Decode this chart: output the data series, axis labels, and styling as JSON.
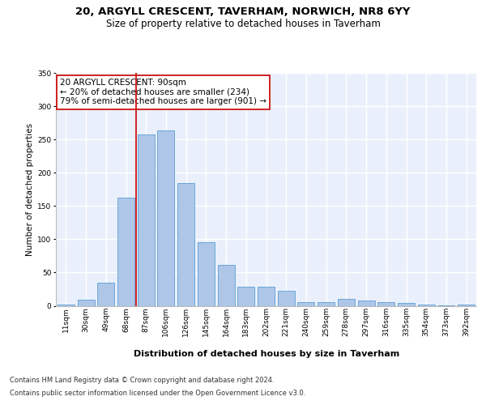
{
  "title1": "20, ARGYLL CRESCENT, TAVERHAM, NORWICH, NR8 6YY",
  "title2": "Size of property relative to detached houses in Taverham",
  "xlabel": "Distribution of detached houses by size in Taverham",
  "ylabel": "Number of detached properties",
  "categories": [
    "11sqm",
    "30sqm",
    "49sqm",
    "68sqm",
    "87sqm",
    "106sqm",
    "126sqm",
    "145sqm",
    "164sqm",
    "183sqm",
    "202sqm",
    "221sqm",
    "240sqm",
    "259sqm",
    "278sqm",
    "297sqm",
    "316sqm",
    "335sqm",
    "354sqm",
    "373sqm",
    "392sqm"
  ],
  "values": [
    2,
    9,
    35,
    162,
    258,
    263,
    185,
    96,
    61,
    29,
    29,
    22,
    6,
    5,
    10,
    8,
    6,
    4,
    2,
    1,
    2
  ],
  "bar_color": "#aec6e8",
  "bar_edge_color": "#5a9fd4",
  "background_color": "#eaf0fb",
  "grid_color": "#ffffff",
  "property_label": "20 ARGYLL CRESCENT: 90sqm",
  "annotation_line1": "← 20% of detached houses are smaller (234)",
  "annotation_line2": "79% of semi-detached houses are larger (901) →",
  "vline_color": "#cc0000",
  "annotation_box_color": "#ffffff",
  "annotation_box_edge": "#cc0000",
  "ylim": [
    0,
    350
  ],
  "yticks": [
    0,
    50,
    100,
    150,
    200,
    250,
    300,
    350
  ],
  "footnote1": "Contains HM Land Registry data © Crown copyright and database right 2024.",
  "footnote2": "Contains public sector information licensed under the Open Government Licence v3.0.",
  "title1_fontsize": 9.5,
  "title2_fontsize": 8.5,
  "xlabel_fontsize": 8,
  "ylabel_fontsize": 7.5,
  "tick_fontsize": 6.5,
  "annotation_fontsize": 7.5,
  "footnote_fontsize": 6
}
